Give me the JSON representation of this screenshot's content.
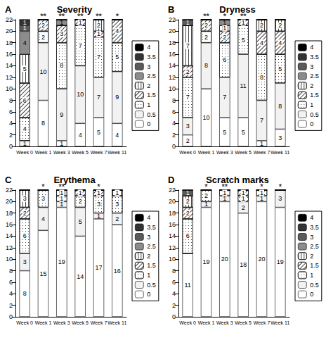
{
  "chart_data": [
    {
      "type": "bar",
      "panel_label": "A",
      "title": "Severity",
      "categories": [
        "Week 0",
        "Week 1",
        "Week 3",
        "Week 5",
        "Week 7",
        "Week 11"
      ],
      "series": [
        {
          "name": "0",
          "color": "#ffffff",
          "values": [
            0,
            8,
            1,
            4,
            5,
            4
          ]
        },
        {
          "name": "0.5",
          "color": "#f2f2f2",
          "values": [
            1,
            10,
            9,
            10,
            7,
            9
          ]
        },
        {
          "name": "1",
          "color": "#ffffff",
          "values": [
            4,
            2,
            8,
            7,
            7,
            5
          ]
        },
        {
          "name": "1.5",
          "color": "#ffffff",
          "values": [
            6,
            2,
            3,
            1,
            1,
            4
          ]
        },
        {
          "name": "2",
          "color": "#ffffff",
          "values": [
            5,
            0,
            0,
            0,
            2,
            0
          ]
        },
        {
          "name": "2.5",
          "color": "#8c8c8c",
          "values": [
            4,
            0,
            1,
            0,
            0,
            0
          ]
        },
        {
          "name": "3",
          "color": "#5a5a5a",
          "values": [
            1,
            0,
            0,
            0,
            0,
            0
          ]
        },
        {
          "name": "3.5",
          "color": "#333333",
          "values": [
            1,
            0,
            0,
            0,
            0,
            0
          ]
        },
        {
          "name": "4",
          "color": "#000000",
          "values": [
            0,
            0,
            0,
            0,
            0,
            0
          ]
        }
      ],
      "annotations": [
        null,
        "**",
        "**",
        "**",
        "**",
        "*"
      ],
      "ylim": [
        0,
        22
      ],
      "yticks": [
        0,
        2,
        4,
        6,
        8,
        10,
        12,
        14,
        16,
        18,
        20,
        22
      ],
      "stacked": true,
      "data_labels": true,
      "legend": "right",
      "grid": false
    },
    {
      "type": "bar",
      "panel_label": "B",
      "title": "Dryness",
      "categories": [
        "Week 0",
        "Week 1",
        "Week 3",
        "Week 5",
        "Week 7",
        "Week 11"
      ],
      "series": [
        {
          "name": "0",
          "color": "#ffffff",
          "values": [
            2,
            10,
            5,
            5,
            1,
            3
          ]
        },
        {
          "name": "0.5",
          "color": "#f2f2f2",
          "values": [
            3,
            8,
            7,
            11,
            7,
            8
          ]
        },
        {
          "name": "1",
          "color": "#ffffff",
          "values": [
            7,
            2,
            6,
            5,
            8,
            5
          ]
        },
        {
          "name": "1.5",
          "color": "#ffffff",
          "values": [
            2,
            2,
            2,
            1,
            4,
            4
          ]
        },
        {
          "name": "2",
          "color": "#ffffff",
          "values": [
            7,
            0,
            1,
            0,
            2,
            2
          ]
        },
        {
          "name": "2.5",
          "color": "#8c8c8c",
          "values": [
            0,
            0,
            1,
            0,
            0,
            0
          ]
        },
        {
          "name": "3",
          "color": "#5a5a5a",
          "values": [
            1,
            0,
            0,
            0,
            0,
            0
          ]
        },
        {
          "name": "3.5",
          "color": "#333333",
          "values": [
            0,
            0,
            0,
            0,
            0,
            0
          ]
        },
        {
          "name": "4",
          "color": "#000000",
          "values": [
            0,
            0,
            0,
            0,
            0,
            0
          ]
        }
      ],
      "annotations": [
        null,
        "**",
        "*",
        "**",
        null,
        null
      ],
      "ylim": [
        0,
        22
      ],
      "yticks": [
        0,
        2,
        4,
        6,
        8,
        10,
        12,
        14,
        16,
        18,
        20,
        22
      ],
      "stacked": true,
      "data_labels": true,
      "legend": "right",
      "grid": false
    },
    {
      "type": "bar",
      "panel_label": "C",
      "title": "Erythema",
      "categories": [
        "Week 0",
        "Week 1",
        "Week 3",
        "Week 5",
        "Week 7",
        "Week 11"
      ],
      "series": [
        {
          "name": "0",
          "color": "#ffffff",
          "values": [
            8,
            15,
            19,
            14,
            17,
            16
          ]
        },
        {
          "name": "0.5",
          "color": "#f2f2f2",
          "values": [
            3,
            4,
            1,
            5,
            1,
            2
          ]
        },
        {
          "name": "1",
          "color": "#ffffff",
          "values": [
            6,
            3,
            1,
            2,
            3,
            3
          ]
        },
        {
          "name": "1.5",
          "color": "#ffffff",
          "values": [
            2,
            0,
            0,
            1,
            1,
            0
          ]
        },
        {
          "name": "2",
          "color": "#ffffff",
          "values": [
            3,
            0,
            1,
            0,
            0,
            1
          ]
        },
        {
          "name": "2.5",
          "color": "#8c8c8c",
          "values": [
            0,
            0,
            0,
            0,
            0,
            0
          ]
        },
        {
          "name": "3",
          "color": "#5a5a5a",
          "values": [
            0,
            0,
            0,
            0,
            0,
            0
          ]
        },
        {
          "name": "3.5",
          "color": "#333333",
          "values": [
            0,
            0,
            0,
            0,
            0,
            0
          ]
        },
        {
          "name": "4",
          "color": "#000000",
          "values": [
            0,
            0,
            0,
            0,
            0,
            0
          ]
        }
      ],
      "annotations": [
        null,
        "*",
        "**",
        null,
        "*",
        null
      ],
      "ylim": [
        0,
        22
      ],
      "yticks": [
        0,
        2,
        4,
        6,
        8,
        10,
        12,
        14,
        16,
        18,
        20,
        22
      ],
      "stacked": true,
      "data_labels": true,
      "legend": "right",
      "grid": false
    },
    {
      "type": "bar",
      "panel_label": "D",
      "title": "Scratch marks",
      "categories": [
        "Week 0",
        "Week 1",
        "Week 3",
        "Week 5",
        "Week 7",
        "Week 11"
      ],
      "series": [
        {
          "name": "0",
          "color": "#ffffff",
          "values": [
            11,
            19,
            20,
            18,
            20,
            19
          ]
        },
        {
          "name": "0.5",
          "color": "#f2f2f2",
          "values": [
            0,
            1,
            1,
            2,
            1,
            3
          ]
        },
        {
          "name": "1",
          "color": "#ffffff",
          "values": [
            6,
            2,
            1,
            1,
            1,
            0
          ]
        },
        {
          "name": "1.5",
          "color": "#ffffff",
          "values": [
            2,
            0,
            0,
            1,
            0,
            0
          ]
        },
        {
          "name": "2",
          "color": "#ffffff",
          "values": [
            2,
            0,
            0,
            0,
            0,
            0
          ]
        },
        {
          "name": "2.5",
          "color": "#8c8c8c",
          "values": [
            0,
            0,
            0,
            0,
            0,
            0
          ]
        },
        {
          "name": "3",
          "color": "#5a5a5a",
          "values": [
            1,
            0,
            0,
            0,
            0,
            0
          ]
        },
        {
          "name": "3.5",
          "color": "#333333",
          "values": [
            0,
            0,
            0,
            0,
            0,
            0
          ]
        },
        {
          "name": "4",
          "color": "#000000",
          "values": [
            0,
            0,
            0,
            0,
            0,
            0
          ]
        }
      ],
      "annotations": [
        null,
        "*",
        "**",
        null,
        "*",
        "*"
      ],
      "ylim": [
        0,
        22
      ],
      "yticks": [
        0,
        2,
        4,
        6,
        8,
        10,
        12,
        14,
        16,
        18,
        20,
        22
      ],
      "stacked": true,
      "data_labels": true,
      "legend": "right",
      "grid": false
    }
  ]
}
